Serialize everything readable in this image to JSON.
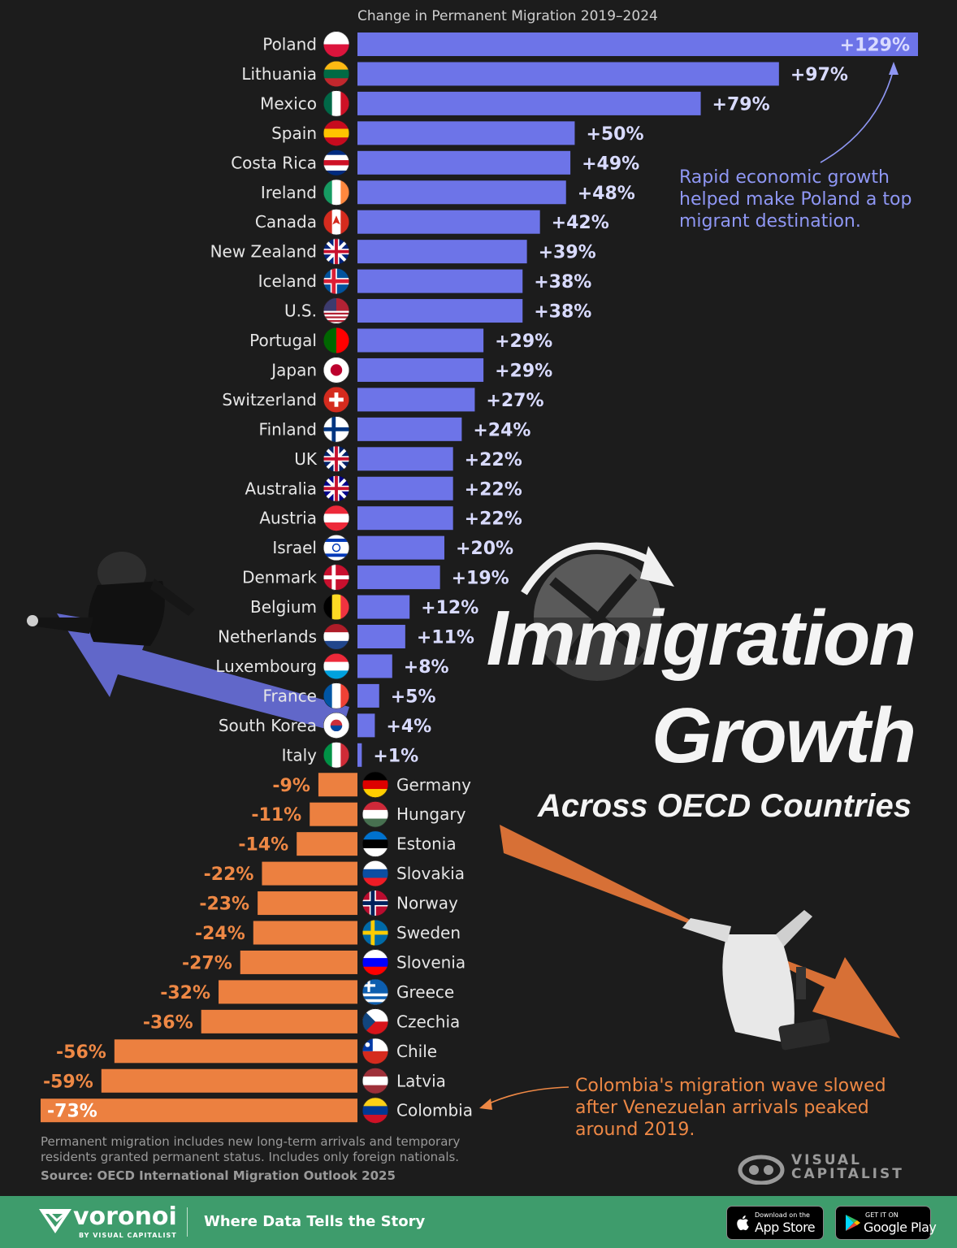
{
  "chart_data": {
    "type": "bar",
    "orientation": "horizontal",
    "title": "Immigration Growth",
    "subtitle": "Across OECD Countries",
    "axis_caption": "Change in Permanent Migration 2019–2024",
    "categories": [
      "Poland",
      "Lithuania",
      "Mexico",
      "Spain",
      "Costa Rica",
      "Ireland",
      "Canada",
      "New Zealand",
      "Iceland",
      "U.S.",
      "Portugal",
      "Japan",
      "Switzerland",
      "Finland",
      "UK",
      "Australia",
      "Austria",
      "Israel",
      "Denmark",
      "Belgium",
      "Netherlands",
      "Luxembourg",
      "France",
      "South Korea",
      "Italy",
      "Germany",
      "Hungary",
      "Estonia",
      "Slovakia",
      "Norway",
      "Sweden",
      "Slovenia",
      "Greece",
      "Czechia",
      "Chile",
      "Latvia",
      "Colombia"
    ],
    "values": [
      129,
      97,
      79,
      50,
      49,
      48,
      42,
      39,
      38,
      38,
      29,
      29,
      27,
      24,
      22,
      22,
      22,
      20,
      19,
      12,
      11,
      8,
      5,
      4,
      1,
      -9,
      -11,
      -14,
      -22,
      -23,
      -24,
      -27,
      -32,
      -36,
      -56,
      -59,
      -73
    ],
    "value_labels": [
      "+129%",
      "+97%",
      "+79%",
      "+50%",
      "+49%",
      "+48%",
      "+42%",
      "+39%",
      "+38%",
      "+38%",
      "+29%",
      "+29%",
      "+27%",
      "+24%",
      "+22%",
      "+22%",
      "+22%",
      "+20%",
      "+19%",
      "+12%",
      "+11%",
      "+8%",
      "+5%",
      "+4%",
      "+1%",
      "-9%",
      "-11%",
      "-14%",
      "-22%",
      "-23%",
      "-24%",
      "-27%",
      "-32%",
      "-36%",
      "-56%",
      "-59%",
      "-73%"
    ],
    "unit": "%",
    "colors": {
      "positive": "#6d74e8",
      "negative": "#ec8040",
      "label_positive": "#d9dbff",
      "label_negative": "#ee8845"
    }
  },
  "annotations": {
    "poland": "Rapid economic growth helped make Poland a top migrant destination.",
    "colombia": "Colombia's migration wave slowed after Venezuelan arrivals peaked around 2019."
  },
  "footnote": "Permanent migration includes new long-term arrivals and temporary residents granted permanent status.  Includes only foreign nationals.",
  "source": "Source: OECD International Migration Outlook 2025",
  "brand": {
    "publisher": "VISUAL CAPITALIST",
    "publisher_line1": "VISUAL",
    "publisher_line2": "CAPITALIST",
    "voronoi": "voronoi",
    "voronoi_by": "BY VISUAL CAPITALIST",
    "tagline": "Where Data Tells the Story",
    "app_store_small": "Download on the",
    "app_store_big": "App Store",
    "google_small": "GET IT ON",
    "google_big": "Google Play"
  },
  "flag_colors": {
    "Poland": [
      "#ffffff",
      "#dc143c"
    ],
    "Lithuania": [
      "#fdb913",
      "#006a44",
      "#c1272d"
    ],
    "Mexico": [
      "#006847",
      "#ffffff",
      "#ce1126"
    ],
    "Spain": [
      "#c60b1e",
      "#ffc400",
      "#c60b1e"
    ],
    "Costa Rica": [
      "#002b7f",
      "#ffffff",
      "#ce1126",
      "#ffffff",
      "#002b7f"
    ],
    "Ireland": [
      "#169b62",
      "#ffffff",
      "#ff883e"
    ],
    "Canada": [
      "#d52b1e",
      "#ffffff",
      "#d52b1e"
    ],
    "New Zealand": [
      "#00247d"
    ],
    "Iceland": [
      "#02529c"
    ],
    "U.S.": [
      "#b22234",
      "#ffffff"
    ],
    "Portugal": [
      "#006600",
      "#ff0000"
    ],
    "Japan": [
      "#ffffff"
    ],
    "Switzerland": [
      "#d52b1e"
    ],
    "Finland": [
      "#ffffff"
    ],
    "UK": [
      "#012169"
    ],
    "Australia": [
      "#00008b"
    ],
    "Austria": [
      "#ed2939",
      "#ffffff",
      "#ed2939"
    ],
    "Israel": [
      "#ffffff"
    ],
    "Denmark": [
      "#c8102e"
    ],
    "Belgium": [
      "#000000",
      "#fdda24",
      "#ef3340"
    ],
    "Netherlands": [
      "#ae1c28",
      "#ffffff",
      "#21468b"
    ],
    "Luxembourg": [
      "#ed2939",
      "#ffffff",
      "#00a1de"
    ],
    "France": [
      "#0055a4",
      "#ffffff",
      "#ef4135"
    ],
    "South Korea": [
      "#ffffff"
    ],
    "Italy": [
      "#009246",
      "#ffffff",
      "#ce2b37"
    ],
    "Germany": [
      "#000000",
      "#dd0000",
      "#ffce00"
    ],
    "Hungary": [
      "#ce2939",
      "#ffffff",
      "#477050"
    ],
    "Estonia": [
      "#0072ce",
      "#000000",
      "#ffffff"
    ],
    "Slovakia": [
      "#ffffff",
      "#0b4ea2",
      "#ee1c25"
    ],
    "Norway": [
      "#ba0c2f"
    ],
    "Sweden": [
      "#006aa7"
    ],
    "Slovenia": [
      "#ffffff",
      "#0000ff",
      "#ff0000"
    ],
    "Greece": [
      "#0d5eaf",
      "#ffffff"
    ],
    "Czechia": [
      "#ffffff",
      "#d7141a"
    ],
    "Chile": [
      "#ffffff",
      "#d52b1e"
    ],
    "Latvia": [
      "#9e3039",
      "#ffffff",
      "#9e3039"
    ],
    "Colombia": [
      "#fcd116",
      "#003893",
      "#ce1126"
    ]
  }
}
